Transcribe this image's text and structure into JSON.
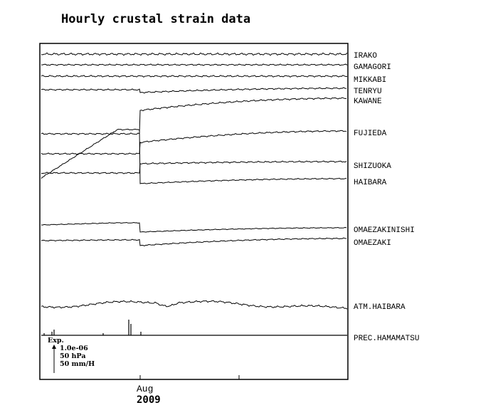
{
  "chart_data": {
    "type": "line",
    "title": "Hourly crustal strain data",
    "x_tick_label": "Aug",
    "x_year_label": "2009",
    "scale_legend": {
      "header": "Exp.",
      "lines": [
        "1.0e-06",
        "50 hPa",
        "50 mm/H"
      ]
    },
    "series": [
      {
        "name": "IRAKO",
        "kind": "strain",
        "step": 0,
        "wiggle": 1.4
      },
      {
        "name": "GAMAGORI",
        "kind": "strain",
        "step": 0,
        "wiggle": 0.9
      },
      {
        "name": "MIKKABI",
        "kind": "strain",
        "step": 0,
        "wiggle": 1.1
      },
      {
        "name": "TENRYU",
        "kind": "strain",
        "step": 0.3,
        "wiggle": 0.9
      },
      {
        "name": "KAWANE",
        "kind": "strain",
        "step": 3.0,
        "wiggle": 1.0
      },
      {
        "name": "FUJIEDA",
        "kind": "strain",
        "step": 1.0,
        "wiggle": 0.9
      },
      {
        "name": "SHIZUOKA",
        "kind": "strain",
        "step": 1.0,
        "wiggle": 0.9
      },
      {
        "name": "HAIBARA",
        "kind": "strain",
        "step": 5.7,
        "wiggle": 0.7
      },
      {
        "name": "OMAEZAKINISHI",
        "kind": "strain",
        "step": 0.9,
        "wiggle": 0.5
      },
      {
        "name": "OMAEZAKI",
        "kind": "strain",
        "step": 6.4,
        "wiggle": 0.7
      },
      {
        "name": "ATM.HAIBARA",
        "kind": "pressure",
        "step": 0,
        "wiggle": 1.2
      },
      {
        "name": "PREC.HAMAMATSU",
        "kind": "precipitation",
        "step": 0,
        "wiggle": 0
      }
    ]
  }
}
